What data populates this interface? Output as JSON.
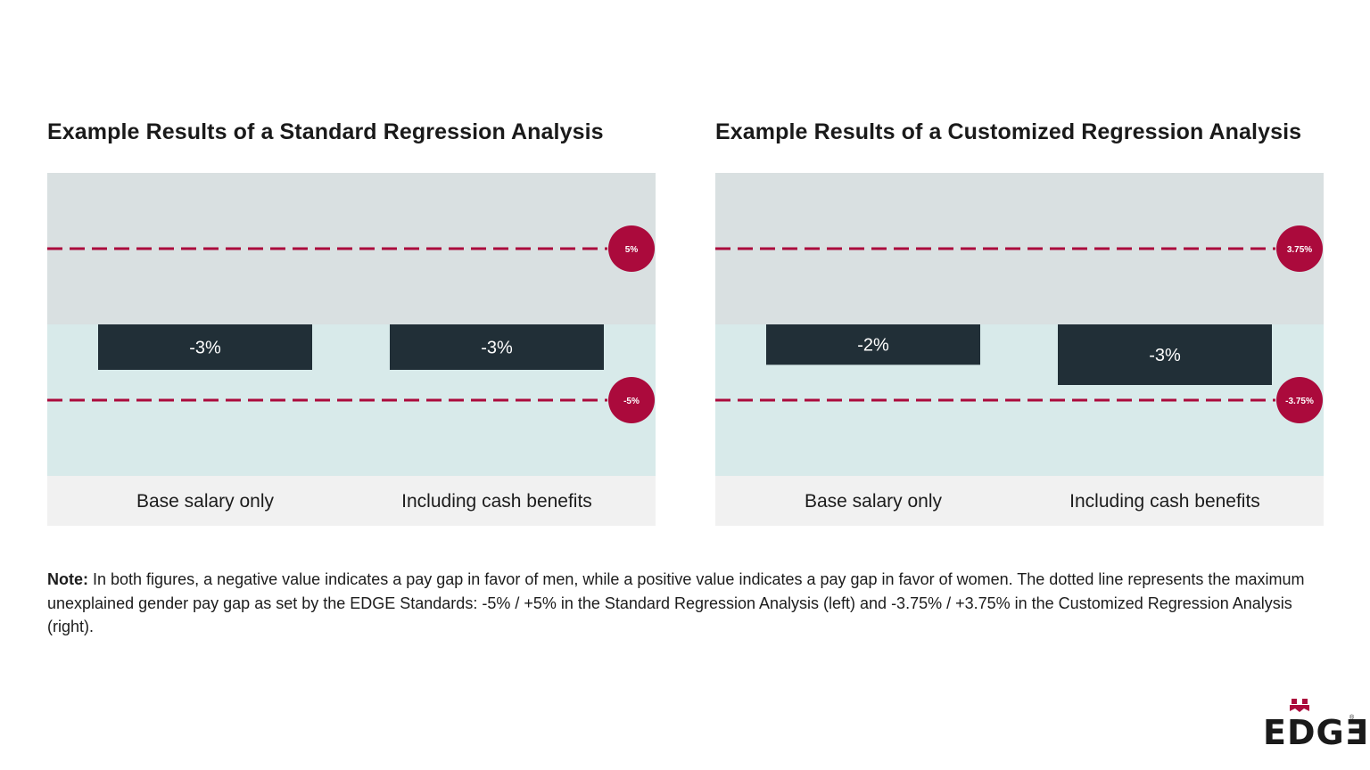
{
  "chart_data": [
    {
      "type": "bar",
      "title": "Example Results of a Standard Regression Analysis",
      "categories": [
        "Base salary only",
        "Including cash benefits"
      ],
      "values": [
        -3,
        -3
      ],
      "value_labels": [
        "-3%",
        "-3%"
      ],
      "thresholds": [
        {
          "value": 5,
          "label": "5%"
        },
        {
          "value": -5,
          "label": "-5%"
        }
      ],
      "ylim": [
        -10,
        10
      ],
      "grid": false,
      "legend": "none"
    },
    {
      "type": "bar",
      "title": "Example Results of a Customized Regression Analysis",
      "categories": [
        "Base salary only",
        "Including cash benefits"
      ],
      "values": [
        -2,
        -3
      ],
      "value_labels": [
        "-2%",
        "-3%"
      ],
      "thresholds": [
        {
          "value": 3.75,
          "label": "3.75%"
        },
        {
          "value": -3.75,
          "label": "-3.75%"
        }
      ],
      "ylim": [
        -7.5,
        7.5
      ],
      "grid": false,
      "legend": "none"
    }
  ],
  "colors": {
    "bar": "#212f37",
    "threshold": "#ab0a3c",
    "positive_zone": "#d9e0e1",
    "negative_zone": "#d8eaea",
    "category_band": "#f1f1f1"
  },
  "note": {
    "label": "Note:",
    "text": " In both figures, a negative value indicates a pay gap in favor of men, while a positive value indicates a pay gap in favor of women. The dotted line represents the maximum unexplained gender pay gap as set by the EDGE Standards: -5% / +5% in the Standard Regression Analysis (left) and -3.75% / +3.75% in the Customized Regression Analysis (right)."
  },
  "logo": {
    "text": "EDGƎ",
    "registered": "®"
  }
}
